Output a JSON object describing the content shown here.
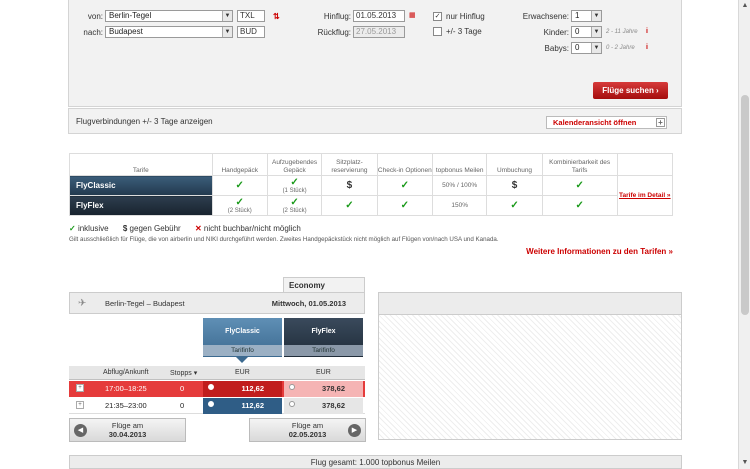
{
  "search": {
    "from_label": "von:",
    "to_label": "nach:",
    "from_city": "Berlin-Tegel",
    "from_code": "TXL",
    "to_city": "Budapest",
    "to_code": "BUD",
    "outbound_label": "Hinflug:",
    "outbound_date": "01.05.2013",
    "return_label": "Rückflug:",
    "return_date": "27.05.2013",
    "only_outbound_label": "nur Hinflug",
    "only_outbound_checked": true,
    "plusminus_label": "+/- 3 Tage",
    "adults_label": "Erwachsene:",
    "adults_value": "1",
    "children_label": "Kinder:",
    "children_value": "0",
    "children_hint": "2 - 11 Jahre",
    "babies_label": "Babys:",
    "babies_value": "0",
    "babies_hint": "0 - 2 Jahre",
    "info_mark": "i",
    "submit_label": "Flüge suchen ›"
  },
  "flexbar": {
    "text": "Flugverbindungen +/- 3 Tage anzeigen",
    "button": "Kalenderansicht öffnen",
    "button_plus": "+"
  },
  "tariffs": {
    "headers": [
      "Tarife",
      "Handgepäck",
      "Aufzugebendes Gepäck",
      "Sitzplatz-reservierung",
      "Check-in Optionen",
      "topbonus Meilen",
      "Umbuchung",
      "Kombinierbarkeit des Tarifs"
    ],
    "rows": [
      {
        "name": "FlyClassic",
        "cells": [
          "✓",
          "✓",
          "$",
          "✓",
          "50% / 100%",
          "$",
          "✓"
        ],
        "sub": [
          "",
          "(1 Stück)",
          "",
          "",
          "",
          "",
          ""
        ]
      },
      {
        "name": "FlyFlex",
        "cells": [
          "✓",
          "✓",
          "✓",
          "✓",
          "150%",
          "✓",
          "✓"
        ],
        "sub": [
          "(2 Stück)",
          "(2 Stück)",
          "",
          "",
          "",
          "",
          ""
        ]
      }
    ],
    "link": "Tarife im Detail »"
  },
  "legend": {
    "inclusive": "inklusive",
    "fee": "gegen Gebühr",
    "not_bookable": "nicht buchbar/nicht möglich"
  },
  "note": "Gilt ausschließlich für Flüge, die von airberlin und NIKI durchgeführt werden. Zweites Handgepäckstück nicht möglich auf Flügen von/nach USA und Kanada.",
  "more_info": "Weitere Informationen zu den Tarifen »",
  "flights": {
    "cabin": "Economy",
    "route": "Berlin-Tegel – Budapest",
    "day": "Mittwoch, 01.05.2013",
    "tab_classic": "FlyClassic",
    "tab_flex": "FlyFlex",
    "tarifinfo": "Tarifinfo",
    "col_time": "Abflug/Ankunft",
    "col_stops": "Stopps ▾",
    "col_eur1": "EUR",
    "col_eur2": "EUR",
    "rows": [
      {
        "expander": "+",
        "time": "17:00–18:25",
        "stops": "0",
        "classic": "112,62",
        "flex": "378,62"
      },
      {
        "expander": "+",
        "time": "21:35–23:00",
        "stops": "0",
        "classic": "112,62",
        "flex": "378,62"
      }
    ],
    "prev_label": "Flüge am",
    "prev_date": "30.04.2013",
    "next_label": "Flüge am",
    "next_date": "02.05.2013"
  },
  "total": "Flug gesamt: 1.000 topbonus Meilen"
}
